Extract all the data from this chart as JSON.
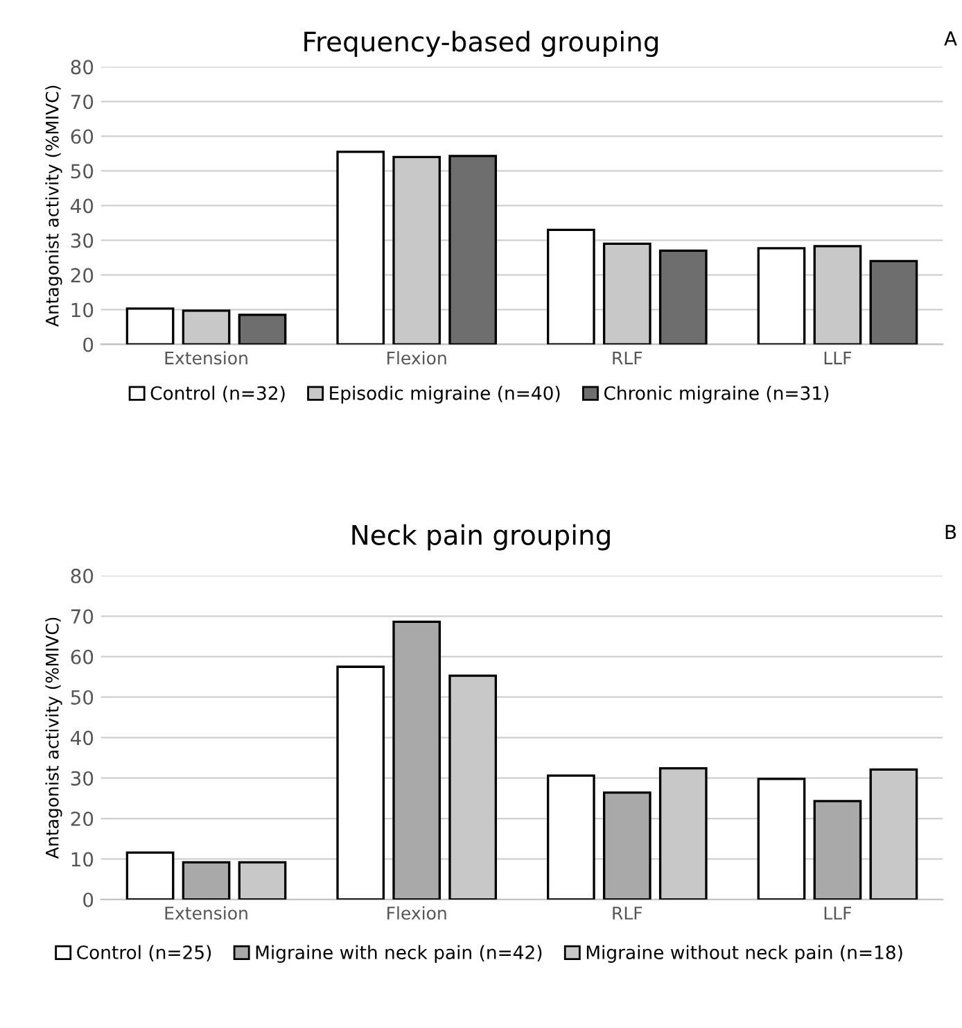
{
  "chart_data": [
    {
      "type": "bar",
      "title": "Frequency-based grouping",
      "ylabel": "Antagonist activity (%MIVC)",
      "annotations": [
        "A"
      ],
      "categories": [
        "Extension",
        "Flexion",
        "RLF",
        "LLF"
      ],
      "series": [
        {
          "name": "Control (n=32)",
          "color": "#ffffff",
          "values": [
            10.3,
            55.5,
            33,
            27.7
          ]
        },
        {
          "name": "Episodic migraine (n=40)",
          "color": "#c8c8c8",
          "values": [
            9.7,
            54,
            29,
            28.3
          ]
        },
        {
          "name": "Chronic migraine (n=31)",
          "color": "#6e6e6e",
          "values": [
            8.5,
            54.3,
            27,
            24
          ]
        }
      ],
      "ylim": [
        0,
        80
      ],
      "yticks": [
        0,
        10,
        20,
        30,
        40,
        50,
        60,
        70,
        80
      ],
      "grid": "y",
      "legend": "bottom"
    },
    {
      "type": "bar",
      "title": "Neck pain grouping",
      "ylabel": "Antagonist activity (%MIVC)",
      "annotations": [
        "B"
      ],
      "categories": [
        "Extension",
        "Flexion",
        "RLF",
        "LLF"
      ],
      "series": [
        {
          "name": "Control (n=25)",
          "color": "#ffffff",
          "values": [
            11.6,
            57.5,
            30.6,
            29.8
          ]
        },
        {
          "name": "Migraine with neck pain (n=42)",
          "color": "#a9a9a9",
          "values": [
            9.2,
            68.6,
            26.4,
            24.3
          ]
        },
        {
          "name": "Migraine without neck pain (n=18)",
          "color": "#c8c8c8",
          "values": [
            9.2,
            55.3,
            32.4,
            32.1
          ]
        }
      ],
      "ylim": [
        0,
        80
      ],
      "yticks": [
        0,
        10,
        20,
        30,
        40,
        50,
        60,
        70,
        80
      ],
      "grid": "y",
      "legend": "bottom"
    }
  ]
}
